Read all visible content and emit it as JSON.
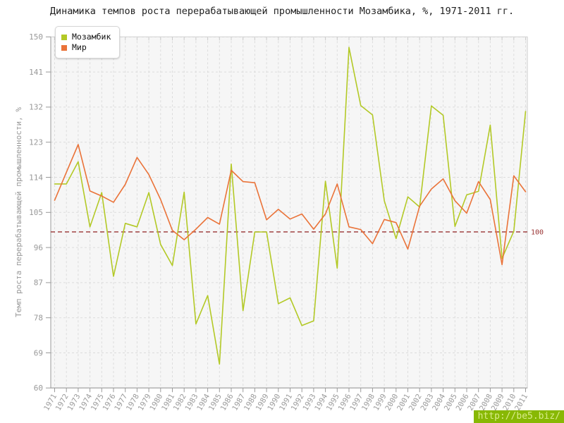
{
  "title": "Динамика темпов роста перерабатывающей промышленности Мозамбика, %, 1971-2011 гг.",
  "watermark": "http://be5.biz/",
  "legend": {
    "items": [
      {
        "label": "Мозамбик",
        "color": "#b3c926"
      },
      {
        "label": "Мир",
        "color": "#ea7339"
      }
    ]
  },
  "colors": {
    "plot_background": "#f6f6f6",
    "plot_border": "#cccccc",
    "axis": "#999999",
    "grid": "#dcdcdc",
    "tick_text": "#999999",
    "reference": "#993333",
    "series_mozambique": "#b3c926",
    "series_world": "#ea7339"
  },
  "chart_data": {
    "type": "line",
    "title": "Динамика темпов роста перерабатывающей промышленности Мозамбика, %, 1971-2011 гг.",
    "xlabel": "",
    "ylabel": "Темп роста перерабатывающей промышленности, %",
    "x": [
      1971,
      1972,
      1973,
      1974,
      1975,
      1976,
      1977,
      1978,
      1979,
      1980,
      1981,
      1982,
      1983,
      1984,
      1985,
      1986,
      1987,
      1988,
      1989,
      1990,
      1991,
      1992,
      1993,
      1994,
      1995,
      1996,
      1997,
      1998,
      1999,
      2000,
      2001,
      2002,
      2003,
      2004,
      2005,
      2006,
      2007,
      2008,
      2009,
      2010,
      2011
    ],
    "series": [
      {
        "name": "Мозамбик",
        "color": "#b3c926",
        "values": [
          112.3,
          112.3,
          118.0,
          101.3,
          110.1,
          88.6,
          102.2,
          101.3,
          110.1,
          96.8,
          91.4,
          110.2,
          76.4,
          83.7,
          66.1,
          117.4,
          79.8,
          100.0,
          100.0,
          81.6,
          83.1,
          76.0,
          77.2,
          113.0,
          90.7,
          147.3,
          132.4,
          130.0,
          108.0,
          98.3,
          109.0,
          106.4,
          132.3,
          129.9,
          101.4,
          109.5,
          110.4,
          127.4,
          93.2,
          100.2,
          130.9
        ]
      },
      {
        "name": "Мир",
        "color": "#ea7339",
        "values": [
          108.1,
          115.3,
          122.4,
          110.5,
          109.2,
          107.6,
          112.2,
          119.1,
          114.7,
          108.3,
          100.4,
          98.0,
          100.7,
          103.7,
          102.0,
          115.8,
          112.9,
          112.6,
          103.1,
          105.8,
          103.3,
          104.6,
          100.7,
          104.6,
          112.3,
          101.3,
          100.6,
          97.0,
          103.2,
          102.4,
          95.6,
          106.6,
          111.0,
          113.6,
          108.0,
          104.8,
          112.9,
          108.3,
          91.6,
          114.4,
          110.3
        ]
      }
    ],
    "reference_line": {
      "value": 100,
      "label": "100",
      "color": "#993333"
    },
    "ylim": [
      60,
      150
    ],
    "yticks": [
      60,
      69,
      78,
      87,
      96,
      105,
      114,
      123,
      132,
      141,
      150
    ],
    "grid": true,
    "legend_position": "top-left"
  }
}
